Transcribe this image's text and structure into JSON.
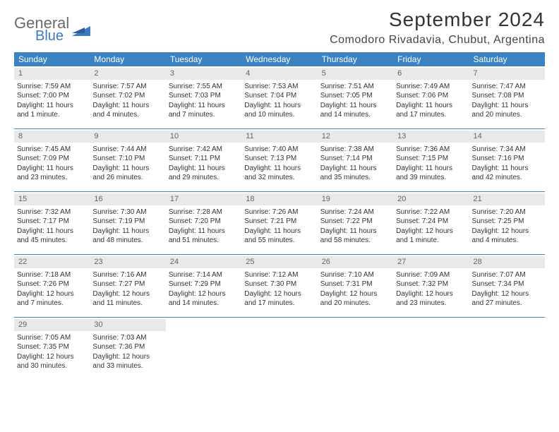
{
  "brand": {
    "line1": "General",
    "line2": "Blue",
    "icon_color": "#3b7bbf",
    "text_gray": "#6a6a6a"
  },
  "title": "September 2024",
  "location": "Comodoro Rivadavia, Chubut, Argentina",
  "header_bg": "#3b83c0",
  "daynum_bg": "#e9e9e9",
  "border_color": "#3b83c0",
  "days_of_week": [
    "Sunday",
    "Monday",
    "Tuesday",
    "Wednesday",
    "Thursday",
    "Friday",
    "Saturday"
  ],
  "weeks": [
    [
      {
        "n": "1",
        "sunrise": "Sunrise: 7:59 AM",
        "sunset": "Sunset: 7:00 PM",
        "day1": "Daylight: 11 hours",
        "day2": "and 1 minute."
      },
      {
        "n": "2",
        "sunrise": "Sunrise: 7:57 AM",
        "sunset": "Sunset: 7:02 PM",
        "day1": "Daylight: 11 hours",
        "day2": "and 4 minutes."
      },
      {
        "n": "3",
        "sunrise": "Sunrise: 7:55 AM",
        "sunset": "Sunset: 7:03 PM",
        "day1": "Daylight: 11 hours",
        "day2": "and 7 minutes."
      },
      {
        "n": "4",
        "sunrise": "Sunrise: 7:53 AM",
        "sunset": "Sunset: 7:04 PM",
        "day1": "Daylight: 11 hours",
        "day2": "and 10 minutes."
      },
      {
        "n": "5",
        "sunrise": "Sunrise: 7:51 AM",
        "sunset": "Sunset: 7:05 PM",
        "day1": "Daylight: 11 hours",
        "day2": "and 14 minutes."
      },
      {
        "n": "6",
        "sunrise": "Sunrise: 7:49 AM",
        "sunset": "Sunset: 7:06 PM",
        "day1": "Daylight: 11 hours",
        "day2": "and 17 minutes."
      },
      {
        "n": "7",
        "sunrise": "Sunrise: 7:47 AM",
        "sunset": "Sunset: 7:08 PM",
        "day1": "Daylight: 11 hours",
        "day2": "and 20 minutes."
      }
    ],
    [
      {
        "n": "8",
        "sunrise": "Sunrise: 7:45 AM",
        "sunset": "Sunset: 7:09 PM",
        "day1": "Daylight: 11 hours",
        "day2": "and 23 minutes."
      },
      {
        "n": "9",
        "sunrise": "Sunrise: 7:44 AM",
        "sunset": "Sunset: 7:10 PM",
        "day1": "Daylight: 11 hours",
        "day2": "and 26 minutes."
      },
      {
        "n": "10",
        "sunrise": "Sunrise: 7:42 AM",
        "sunset": "Sunset: 7:11 PM",
        "day1": "Daylight: 11 hours",
        "day2": "and 29 minutes."
      },
      {
        "n": "11",
        "sunrise": "Sunrise: 7:40 AM",
        "sunset": "Sunset: 7:13 PM",
        "day1": "Daylight: 11 hours",
        "day2": "and 32 minutes."
      },
      {
        "n": "12",
        "sunrise": "Sunrise: 7:38 AM",
        "sunset": "Sunset: 7:14 PM",
        "day1": "Daylight: 11 hours",
        "day2": "and 35 minutes."
      },
      {
        "n": "13",
        "sunrise": "Sunrise: 7:36 AM",
        "sunset": "Sunset: 7:15 PM",
        "day1": "Daylight: 11 hours",
        "day2": "and 39 minutes."
      },
      {
        "n": "14",
        "sunrise": "Sunrise: 7:34 AM",
        "sunset": "Sunset: 7:16 PM",
        "day1": "Daylight: 11 hours",
        "day2": "and 42 minutes."
      }
    ],
    [
      {
        "n": "15",
        "sunrise": "Sunrise: 7:32 AM",
        "sunset": "Sunset: 7:17 PM",
        "day1": "Daylight: 11 hours",
        "day2": "and 45 minutes."
      },
      {
        "n": "16",
        "sunrise": "Sunrise: 7:30 AM",
        "sunset": "Sunset: 7:19 PM",
        "day1": "Daylight: 11 hours",
        "day2": "and 48 minutes."
      },
      {
        "n": "17",
        "sunrise": "Sunrise: 7:28 AM",
        "sunset": "Sunset: 7:20 PM",
        "day1": "Daylight: 11 hours",
        "day2": "and 51 minutes."
      },
      {
        "n": "18",
        "sunrise": "Sunrise: 7:26 AM",
        "sunset": "Sunset: 7:21 PM",
        "day1": "Daylight: 11 hours",
        "day2": "and 55 minutes."
      },
      {
        "n": "19",
        "sunrise": "Sunrise: 7:24 AM",
        "sunset": "Sunset: 7:22 PM",
        "day1": "Daylight: 11 hours",
        "day2": "and 58 minutes."
      },
      {
        "n": "20",
        "sunrise": "Sunrise: 7:22 AM",
        "sunset": "Sunset: 7:24 PM",
        "day1": "Daylight: 12 hours",
        "day2": "and 1 minute."
      },
      {
        "n": "21",
        "sunrise": "Sunrise: 7:20 AM",
        "sunset": "Sunset: 7:25 PM",
        "day1": "Daylight: 12 hours",
        "day2": "and 4 minutes."
      }
    ],
    [
      {
        "n": "22",
        "sunrise": "Sunrise: 7:18 AM",
        "sunset": "Sunset: 7:26 PM",
        "day1": "Daylight: 12 hours",
        "day2": "and 7 minutes."
      },
      {
        "n": "23",
        "sunrise": "Sunrise: 7:16 AM",
        "sunset": "Sunset: 7:27 PM",
        "day1": "Daylight: 12 hours",
        "day2": "and 11 minutes."
      },
      {
        "n": "24",
        "sunrise": "Sunrise: 7:14 AM",
        "sunset": "Sunset: 7:29 PM",
        "day1": "Daylight: 12 hours",
        "day2": "and 14 minutes."
      },
      {
        "n": "25",
        "sunrise": "Sunrise: 7:12 AM",
        "sunset": "Sunset: 7:30 PM",
        "day1": "Daylight: 12 hours",
        "day2": "and 17 minutes."
      },
      {
        "n": "26",
        "sunrise": "Sunrise: 7:10 AM",
        "sunset": "Sunset: 7:31 PM",
        "day1": "Daylight: 12 hours",
        "day2": "and 20 minutes."
      },
      {
        "n": "27",
        "sunrise": "Sunrise: 7:09 AM",
        "sunset": "Sunset: 7:32 PM",
        "day1": "Daylight: 12 hours",
        "day2": "and 23 minutes."
      },
      {
        "n": "28",
        "sunrise": "Sunrise: 7:07 AM",
        "sunset": "Sunset: 7:34 PM",
        "day1": "Daylight: 12 hours",
        "day2": "and 27 minutes."
      }
    ],
    [
      {
        "n": "29",
        "sunrise": "Sunrise: 7:05 AM",
        "sunset": "Sunset: 7:35 PM",
        "day1": "Daylight: 12 hours",
        "day2": "and 30 minutes."
      },
      {
        "n": "30",
        "sunrise": "Sunrise: 7:03 AM",
        "sunset": "Sunset: 7:36 PM",
        "day1": "Daylight: 12 hours",
        "day2": "and 33 minutes."
      },
      null,
      null,
      null,
      null,
      null
    ]
  ]
}
